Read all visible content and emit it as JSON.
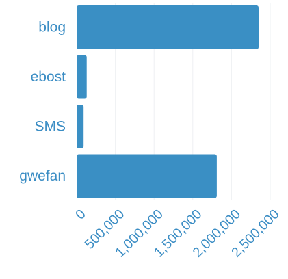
{
  "chart_data": {
    "type": "bar",
    "orientation": "horizontal",
    "title": "",
    "xlabel": "",
    "ylabel": "",
    "categories": [
      "blog",
      "ebost",
      "SMS",
      "gwefan"
    ],
    "values": [
      2350000,
      130000,
      90000,
      1810000
    ],
    "xlim": [
      0,
      2500000
    ],
    "xticks": [
      0,
      500000,
      1000000,
      1500000,
      2000000,
      2500000
    ],
    "xtick_labels": [
      "0",
      "500,000",
      "1,000,000",
      "1,500,000",
      "2,000,000",
      "2,500,000"
    ],
    "grid": true,
    "legend": "none",
    "bar_color": "#3a8fc4",
    "label_color": "#3b8dc4",
    "grid_color": "#eef0f3"
  }
}
